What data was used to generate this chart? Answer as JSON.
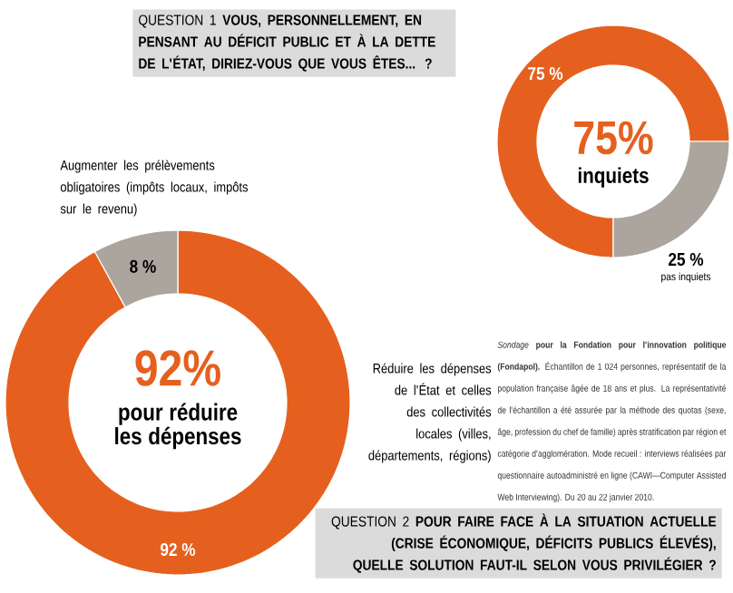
{
  "chart_data": [
    {
      "type": "donut",
      "title": "QUESTION 1 **VOUS, PERSONNELLEMENT, EN PENSANT AU DÉFICIT PUBLIC ET À LA DETTE DE L'ÉTAT, DIRIEZ-VOUS QUE VOUS ÊTES... ?**",
      "categories": [
        "inquiets",
        "pas inquiets"
      ],
      "values": [
        75,
        25
      ],
      "colors": [
        "#e5601e",
        "#aba59d"
      ],
      "value_labels": [
        "75 %",
        "25 %"
      ],
      "annotations": [
        "75%"
      ]
    },
    {
      "type": "donut",
      "title": "QUESTION 2 **POUR FAIRE FACE À LA SITUATION ACTUELLE (CRISE ÉCONOMIQUE, DÉFICITS PUBLICS ÉLEVÉS), QUELLE SOLUTION FAUT-IL SELON VOUS PRIVILÉGIER ?**",
      "categories": [
        "Réduire les dépenses de l'État et celles des collectivités locales (villes, départements, régions)",
        "Augmenter les prélèvements obligatoires (impôts locaux, impôts sur le revenu)"
      ],
      "values": [
        92,
        8
      ],
      "colors": [
        "#e5601e",
        "#aba59d"
      ],
      "value_labels": [
        "92 %",
        "8 %"
      ],
      "annotations": [
        "92%",
        "pour réduire les dépenses",
        "*Sondage* **pour la Fondation pour l'innovation politique (Fondapol).** Échantillon de 1 024 personnes, représentatif de la population française âgée de 18 ans et plus. La représentativité de l'échantillon a été assurée par la méthode des quotas (sexe, âge, profession du chef de famille) après stratification par région et catégorie d'agglomération. Mode recueil : interviews réalisées par questionnaire autoadministré en ligne (CAWI—Computer Assisted Web Interviewing). Du 20 au 22 janvier 2010."
      ]
    }
  ]
}
